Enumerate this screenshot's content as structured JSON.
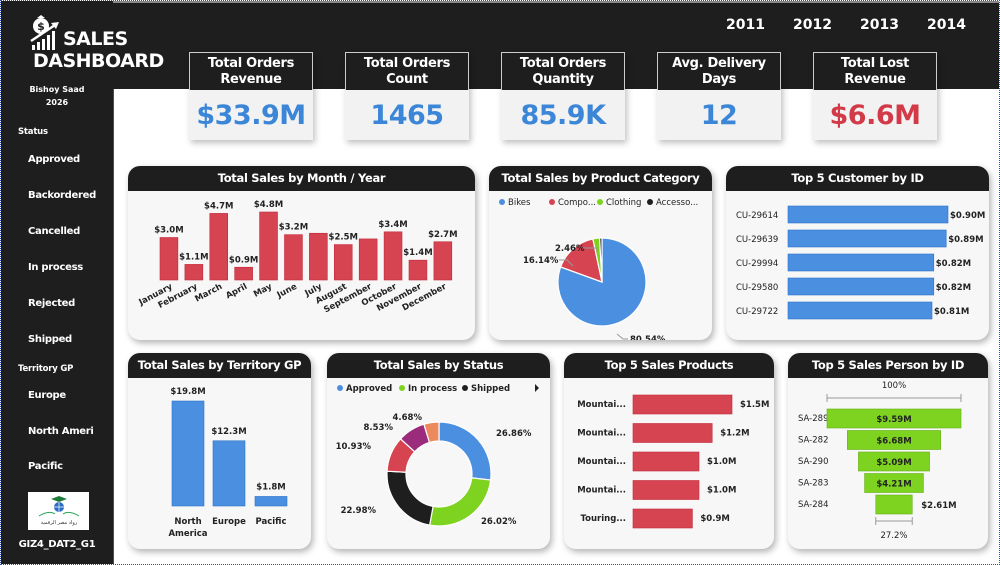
{
  "app": {
    "title_line1": "SALES",
    "title_line2": "DASHBOARD",
    "author": "Bishoy Saad",
    "author_year": "2026",
    "footer": "GIZ4_DAT2_G1",
    "logo_caption": "رواد مصر الرقمية",
    "icons": {
      "logo": "money-bag-growth-chart-icon",
      "org_logo": "graduation-globe-logo"
    }
  },
  "sidebar": {
    "status_heading": "Status",
    "status_items": [
      "Approved",
      "Backordered",
      "Cancelled",
      "In process",
      "Rejected",
      "Shipped"
    ],
    "territory_heading": "Territory GP",
    "territory_items": [
      "Europe",
      "North Ameri",
      "Pacific"
    ]
  },
  "years": [
    "2011",
    "2012",
    "2013",
    "2014"
  ],
  "kpis": [
    {
      "title_1": "Total Orders",
      "title_2": "Revenue",
      "value": "$33.9M",
      "color": "#3c86d8"
    },
    {
      "title_1": "Total Orders",
      "title_2": "Count",
      "value": "1465",
      "color": "#3c86d8"
    },
    {
      "title_1": "Total Orders",
      "title_2": "Quantity",
      "value": "85.9K",
      "color": "#3c86d8"
    },
    {
      "title_1": "Avg. Delivery",
      "title_2": "Days",
      "value": "12",
      "color": "#3c86d8"
    },
    {
      "title_1": "Total Lost",
      "title_2": "Revenue",
      "value": "$6.6M",
      "color": "#d23a48"
    }
  ],
  "colors": {
    "blue": "#4a8fe0",
    "red": "#d64452",
    "green": "#7ed321",
    "black": "#1e1e1e",
    "purple": "#9b2c7b",
    "orange": "#ec8a5e",
    "header": "#1e1e1e"
  },
  "chart_data": [
    {
      "id": "month",
      "type": "bar",
      "title": "Total Sales by Month / Year",
      "categories": [
        "January",
        "February",
        "March",
        "April",
        "May",
        "June",
        "July",
        "August",
        "September",
        "October",
        "November",
        "December"
      ],
      "values": [
        3.0,
        1.1,
        4.7,
        0.9,
        4.8,
        3.2,
        3.3,
        2.5,
        2.9,
        3.4,
        1.4,
        2.7
      ],
      "labels": [
        "$3.0M",
        "$1.1M",
        "$4.7M",
        "$0.9M",
        "$4.8M",
        "$3.2M",
        "",
        "$2.5M",
        "",
        "$3.4M",
        "$1.4M",
        "$2.7M"
      ],
      "unit": "$M",
      "xlabel": "",
      "ylabel": "",
      "grid": false
    },
    {
      "id": "category",
      "type": "pie",
      "title": "Total Sales by Product Category",
      "legend": [
        "Bikes",
        "Compo...",
        "Clothing",
        "Accesso..."
      ],
      "legend_position": "top",
      "categories": [
        "Bikes",
        "Components",
        "Clothing",
        "Accessories"
      ],
      "values": [
        80.54,
        16.14,
        2.46,
        0.86
      ],
      "labels": [
        "80.54%",
        "16.14%",
        "2.46%",
        ""
      ],
      "colors": [
        "#4a8fe0",
        "#d64452",
        "#7ed321",
        "#1e1e1e"
      ]
    },
    {
      "id": "customer",
      "type": "bar",
      "orientation": "horizontal",
      "title": "Top 5 Customer by ID",
      "categories": [
        "CU-29614",
        "CU-29639",
        "CU-29994",
        "CU-29580",
        "CU-29722"
      ],
      "values": [
        0.9,
        0.89,
        0.82,
        0.82,
        0.81
      ],
      "labels": [
        "$0.90M",
        "$0.89M",
        "$0.82M",
        "$0.82M",
        "$0.81M"
      ],
      "unit": "$M"
    },
    {
      "id": "territory",
      "type": "bar",
      "title": "Total Sales by Territory GP",
      "categories": [
        "North America",
        "Europe",
        "Pacific"
      ],
      "values": [
        19.8,
        12.3,
        1.8
      ],
      "labels": [
        "$19.8M",
        "$12.3M",
        "$1.8M"
      ],
      "unit": "$M"
    },
    {
      "id": "status",
      "type": "pie",
      "donut": true,
      "title": "Total Sales by Status",
      "legend": [
        "Approved",
        "In process",
        "Shipped"
      ],
      "legend_position": "top",
      "legend_more_arrow": true,
      "values": [
        26.86,
        26.02,
        22.98,
        10.93,
        8.53,
        4.68
      ],
      "labels": [
        "26.86%",
        "26.02%",
        "22.98%",
        "10.93%",
        "8.53%",
        "4.68%"
      ],
      "colors": [
        "#4a8fe0",
        "#7ed321",
        "#1e1e1e",
        "#d64452",
        "#9b2c7b",
        "#ec8a5e"
      ]
    },
    {
      "id": "products",
      "type": "bar",
      "orientation": "horizontal",
      "title": "Top 5 Sales Products",
      "categories": [
        "Mountai...",
        "Mountai...",
        "Mountai...",
        "Mountai...",
        "Touring..."
      ],
      "values": [
        1.5,
        1.2,
        1.0,
        1.0,
        0.9
      ],
      "labels": [
        "$1.5M",
        "$1.2M",
        "$1.0M",
        "$1.0M",
        "$0.9M"
      ],
      "unit": "$M"
    },
    {
      "id": "salesperson",
      "type": "funnel",
      "title": "Top 5 Sales Person by ID",
      "categories": [
        "SA-289",
        "SA-282",
        "SA-290",
        "SA-283",
        "SA-284"
      ],
      "values": [
        9.59,
        6.68,
        5.09,
        4.21,
        2.61
      ],
      "labels": [
        "$9.59M",
        "$6.68M",
        "$5.09M",
        "$4.21M",
        "$2.61M"
      ],
      "top_percent": "100%",
      "bottom_percent": "27.2%",
      "unit": "$M"
    }
  ]
}
